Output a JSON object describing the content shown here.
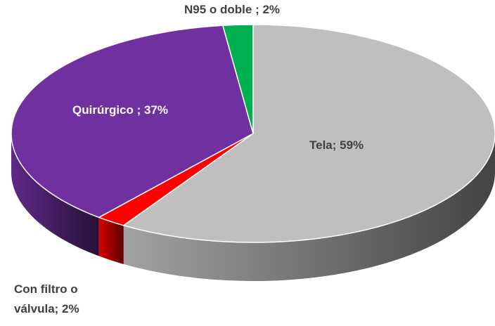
{
  "chart_data": {
    "type": "pie",
    "values": [
      59,
      2,
      37,
      2
    ],
    "value_labels": [
      "Tela; 59%",
      "Con filtro o válvula; 2%",
      "Quirúrgico ; 37%",
      "N95 o doble ; 2%"
    ],
    "colors": [
      "#bfbfbf",
      "#ff0000",
      "#7030a0",
      "#00b050"
    ]
  }
}
